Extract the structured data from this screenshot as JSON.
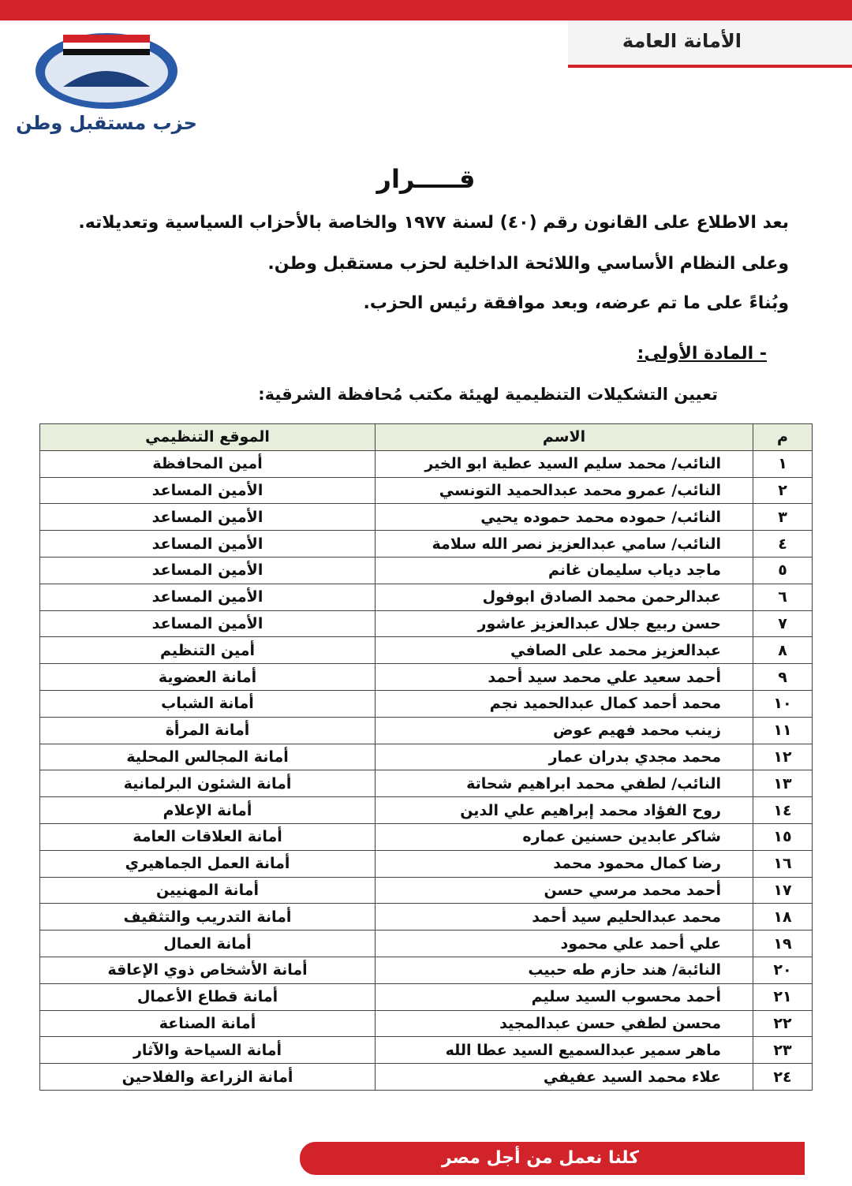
{
  "header": {
    "section": "الأمانة العامة",
    "party": "حزب مستقبل وطن"
  },
  "title": "قـــــرار",
  "preamble": [
    "بعد الاطلاع على القانون رقم (٤٠) لسنة ١٩٧٧ والخاصة بالأحزاب السياسية وتعديلاته.",
    "وعلى النظام الأساسي واللائحة الداخلية لحزب مستقبل وطن.",
    "وبُناءً على ما تم عرضه، وبعد موافقة رئيس الحزب."
  ],
  "article": "- المادة الأولى:",
  "article_text": "تعيين التشكيلات التنظيمية لهيئة مكتب مُحافظة الشرقية:",
  "table": {
    "columns": [
      "م",
      "الاسم",
      "الموقع التنظيمي"
    ],
    "rows": [
      [
        "١",
        "النائب/ محمد سليم السيد عطية ابو الخير",
        "أمين المحافظة"
      ],
      [
        "٢",
        "النائب/ عمرو محمد عبدالحميد التونسي",
        "الأمين المساعد"
      ],
      [
        "٣",
        "النائب/ حموده محمد حموده يحيي",
        "الأمين المساعد"
      ],
      [
        "٤",
        "النائب/ سامي عبدالعزيز نصر الله سلامة",
        "الأمين المساعد"
      ],
      [
        "٥",
        "ماجد دياب سليمان غانم",
        "الأمين المساعد"
      ],
      [
        "٦",
        "عبدالرحمن محمد الصادق ابوفول",
        "الأمين المساعد"
      ],
      [
        "٧",
        "حسن ربيع جلال عبدالعزيز عاشور",
        "الأمين المساعد"
      ],
      [
        "٨",
        "عبدالعزيز محمد على الصافي",
        "أمين التنظيم"
      ],
      [
        "٩",
        "أحمد سعيد علي محمد سيد أحمد",
        "أمانة العضوية"
      ],
      [
        "١٠",
        "محمد أحمد كمال عبدالحميد نجم",
        "أمانة الشباب"
      ],
      [
        "١١",
        "زينب محمد فهيم عوض",
        "أمانة المرأة"
      ],
      [
        "١٢",
        "محمد مجدي بدران عمار",
        "أمانة المجالس المحلية"
      ],
      [
        "١٣",
        "النائب/ لطفي محمد ابراهيم شحاتة",
        "أمانة الشئون البرلمانية"
      ],
      [
        "١٤",
        "روح الفؤاد محمد إبراهيم علي الدين",
        "أمانة الإعلام"
      ],
      [
        "١٥",
        "شاكر عابدين حسنين عماره",
        "أمانة العلاقات العامة"
      ],
      [
        "١٦",
        "رضا كمال محمود محمد",
        "أمانة العمل الجماهيري"
      ],
      [
        "١٧",
        "أحمد محمد مرسي حسن",
        "أمانة المهنيين"
      ],
      [
        "١٨",
        "محمد عبدالحليم سيد أحمد",
        "أمانة التدريب والتثقيف"
      ],
      [
        "١٩",
        "علي أحمد علي محمود",
        "أمانة العمال"
      ],
      [
        "٢٠",
        "النائبة/ هند حازم طه حبيب",
        "أمانة الأشخاص ذوي الإعاقة"
      ],
      [
        "٢١",
        "أحمد محسوب السيد سليم",
        "أمانة قطاع الأعمال"
      ],
      [
        "٢٢",
        "محسن لطفي حسن عبدالمجيد",
        "أمانة الصناعة"
      ],
      [
        "٢٣",
        "ماهر سمير عبدالسميع السيد عطا الله",
        "أمانة السياحة والآثار"
      ],
      [
        "٢٤",
        "علاء محمد السيد عفيفي",
        "أمانة الزراعة والفلاحين"
      ]
    ]
  },
  "footer": "كلنا نعمل من أجل مصر"
}
